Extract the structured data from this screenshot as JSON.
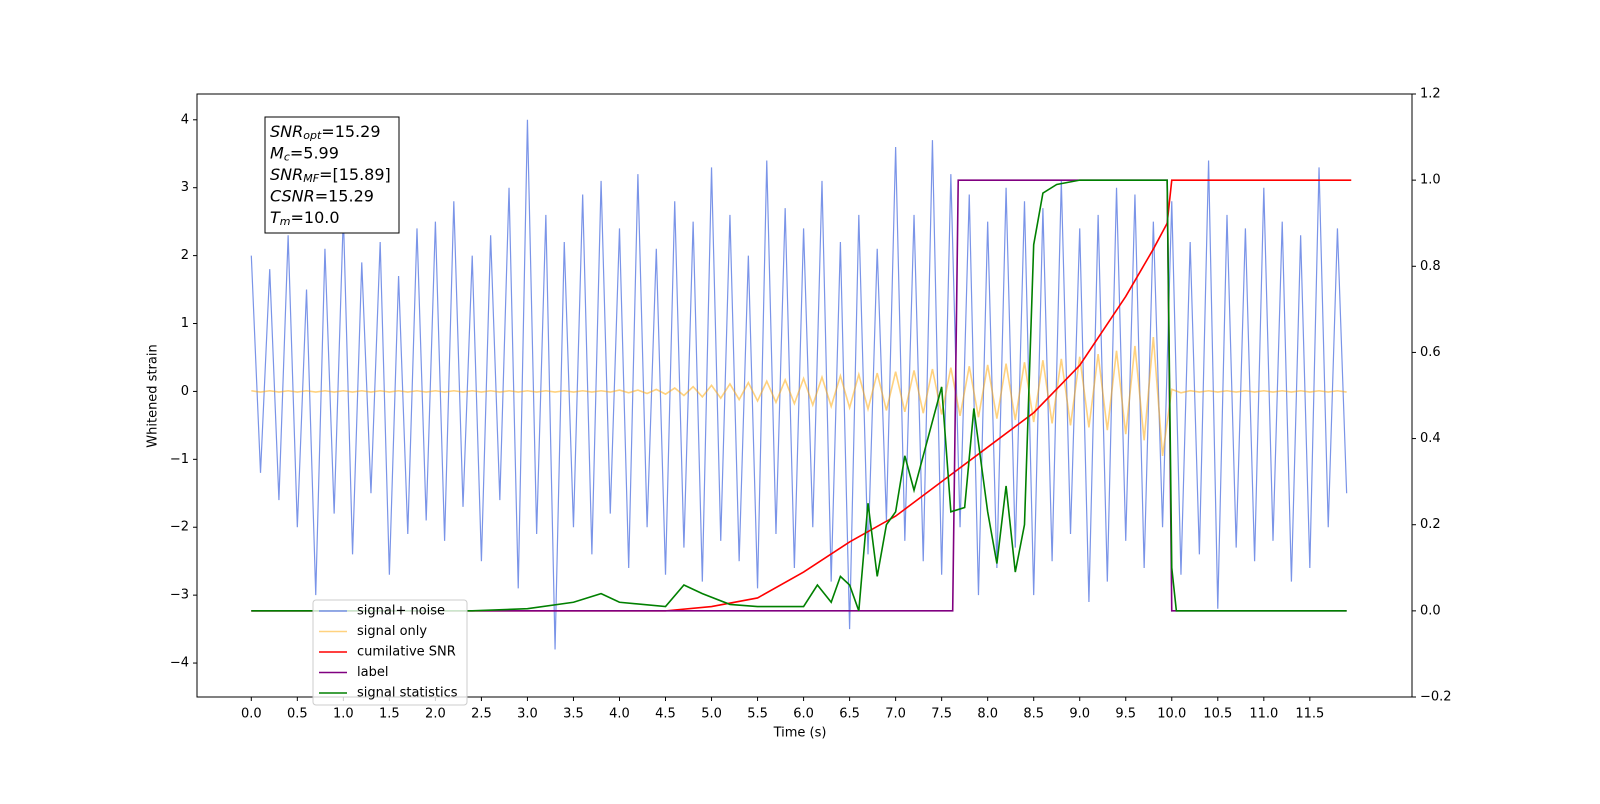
{
  "chart_data": {
    "type": "line",
    "xlabel": "Time (s)",
    "ylabel": "Whitened strain",
    "annotations": [
      {
        "symbol": "SNR",
        "sub": "opt",
        "text": "=15.29"
      },
      {
        "symbol": "M",
        "sub": "c",
        "text": "=5.99"
      },
      {
        "symbol": "SNR",
        "sub": "MF",
        "text": "=[15.89]"
      },
      {
        "symbol": "CSNR",
        "sub": null,
        "text": "=15.29"
      },
      {
        "symbol": "T",
        "sub": "m",
        "text": "=10.0"
      }
    ],
    "xlim": [
      -0.59,
      12.61
    ],
    "ylim": [
      -4.5,
      4.38
    ],
    "y2lim": [
      -0.2,
      1.2
    ],
    "xticks": [
      {
        "value": 0,
        "label": "0.0"
      },
      {
        "value": 0.5,
        "label": "0.5"
      },
      {
        "value": 1,
        "label": "1.0"
      },
      {
        "value": 1.5,
        "label": "1.5"
      },
      {
        "value": 2,
        "label": "2.0"
      },
      {
        "value": 2.5,
        "label": "2.5"
      },
      {
        "value": 3,
        "label": "3.0"
      },
      {
        "value": 3.5,
        "label": "3.5"
      },
      {
        "value": 4,
        "label": "4.0"
      },
      {
        "value": 4.5,
        "label": "4.5"
      },
      {
        "value": 5,
        "label": "5.0"
      },
      {
        "value": 5.5,
        "label": "5.5"
      },
      {
        "value": 6,
        "label": "6.0"
      },
      {
        "value": 6.5,
        "label": "6.5"
      },
      {
        "value": 7,
        "label": "7.0"
      },
      {
        "value": 7.5,
        "label": "7.5"
      },
      {
        "value": 8,
        "label": "8.0"
      },
      {
        "value": 8.5,
        "label": "8.5"
      },
      {
        "value": 9,
        "label": "9.0"
      },
      {
        "value": 9.5,
        "label": "9.5"
      },
      {
        "value": 10,
        "label": "10.0"
      },
      {
        "value": 10.5,
        "label": "10.5"
      },
      {
        "value": 11,
        "label": "11.0"
      },
      {
        "value": 11.5,
        "label": "11.5"
      }
    ],
    "yticks": [
      {
        "value": -4,
        "label": "−4"
      },
      {
        "value": -3,
        "label": "−3"
      },
      {
        "value": -2,
        "label": "−2"
      },
      {
        "value": -1,
        "label": "−1"
      },
      0,
      1,
      2,
      3,
      4
    ],
    "y2ticks": [
      {
        "value": -0.2,
        "label": "−0.2"
      },
      {
        "value": 0,
        "label": "0.0"
      },
      0.2,
      0.4,
      0.6,
      0.8,
      {
        "value": 1,
        "label": "1.0"
      },
      1.2
    ],
    "legend": "lower left",
    "x": [
      0,
      0.1,
      0.2,
      0.3,
      0.4,
      0.5,
      0.6,
      0.7,
      0.8,
      0.9,
      1,
      1.1,
      1.2,
      1.3,
      1.4,
      1.5,
      1.6,
      1.7,
      1.8,
      1.9,
      2,
      2.1,
      2.2,
      2.3,
      2.4,
      2.5,
      2.6,
      2.7,
      2.8,
      2.9,
      3,
      3.1,
      3.2,
      3.3,
      3.4,
      3.5,
      3.6,
      3.7,
      3.8,
      3.9,
      4,
      4.1,
      4.2,
      4.3,
      4.4,
      4.5,
      4.6,
      4.7,
      4.8,
      4.9,
      5,
      5.1,
      5.2,
      5.3,
      5.4,
      5.5,
      5.6,
      5.7,
      5.8,
      5.9,
      6,
      6.1,
      6.2,
      6.3,
      6.4,
      6.5,
      6.6,
      6.7,
      6.8,
      6.9,
      7,
      7.1,
      7.2,
      7.3,
      7.4,
      7.5,
      7.6,
      7.7,
      7.8,
      7.9,
      8,
      8.1,
      8.2,
      8.3,
      8.4,
      8.5,
      8.6,
      8.7,
      8.8,
      8.9,
      9,
      9.1,
      9.2,
      9.3,
      9.4,
      9.5,
      9.6,
      9.7,
      9.8,
      9.9,
      10,
      10.1,
      10.2,
      10.3,
      10.4,
      10.5,
      10.6,
      10.7,
      10.8,
      10.9,
      11,
      11.1,
      11.2,
      11.3,
      11.4,
      11.5,
      11.6,
      11.7,
      11.8,
      11.9
    ],
    "series": [
      {
        "name": "signal+ noise",
        "color": "#7a94e8",
        "values": [
          2.0,
          -1.2,
          1.8,
          -1.6,
          2.3,
          -2.0,
          1.5,
          -3.0,
          2.1,
          -1.8,
          2.6,
          -2.4,
          1.9,
          -1.5,
          2.2,
          -2.7,
          1.7,
          -2.1,
          2.4,
          -1.9,
          2.5,
          -2.2,
          2.8,
          -1.7,
          2.0,
          -2.5,
          2.3,
          -1.6,
          3.0,
          -2.9,
          4.0,
          -2.1,
          2.6,
          -3.8,
          2.2,
          -2.0,
          2.9,
          -2.4,
          3.1,
          -1.8,
          2.4,
          -2.6,
          3.2,
          -2.0,
          2.1,
          -2.7,
          2.8,
          -2.3,
          2.5,
          -2.8,
          3.3,
          -2.2,
          2.6,
          -2.5,
          2.0,
          -2.9,
          3.4,
          -2.1,
          2.7,
          -2.6,
          2.4,
          -2.0,
          3.1,
          -2.8,
          2.2,
          -3.5,
          2.6,
          -2.4,
          2.1,
          -1.9,
          3.6,
          -2.2,
          2.6,
          -2.5,
          3.7,
          -2.7,
          3.2,
          -2.0,
          2.9,
          -3.0,
          2.5,
          -2.6,
          3.0,
          -2.3,
          2.8,
          -3.0,
          2.7,
          -2.5,
          3.1,
          -2.1,
          2.4,
          -3.1,
          2.6,
          -2.8,
          3.0,
          -2.2,
          2.9,
          -2.6,
          2.5,
          -2.0,
          2.8,
          -2.7,
          2.2,
          -2.4,
          3.4,
          -3.2,
          2.6,
          -2.3,
          2.4,
          -2.5,
          3.0,
          -2.2,
          2.5,
          -2.8,
          2.3,
          -2.6,
          3.3,
          -2.0,
          2.4,
          -1.5
        ]
      },
      {
        "name": "signal only",
        "color": "#ffa500",
        "values": [
          0.01,
          -0.01,
          0.01,
          -0.01,
          0.01,
          -0.01,
          0.01,
          -0.01,
          0.01,
          -0.01,
          0.01,
          -0.01,
          0.01,
          -0.01,
          0.01,
          -0.01,
          0.01,
          -0.01,
          0.01,
          -0.01,
          0.01,
          -0.01,
          0.01,
          -0.01,
          0.01,
          -0.01,
          0.01,
          -0.01,
          0.01,
          -0.01,
          0.01,
          -0.01,
          0.01,
          -0.01,
          0.01,
          -0.01,
          0.01,
          -0.01,
          0.01,
          -0.01,
          0.02,
          -0.02,
          0.02,
          -0.03,
          0.03,
          -0.04,
          0.05,
          -0.06,
          0.07,
          -0.08,
          0.09,
          -0.1,
          0.11,
          -0.12,
          0.13,
          -0.14,
          0.15,
          -0.16,
          0.17,
          -0.18,
          0.19,
          -0.2,
          0.21,
          -0.22,
          0.23,
          -0.24,
          0.25,
          -0.26,
          0.27,
          -0.28,
          0.29,
          -0.3,
          0.31,
          -0.32,
          0.33,
          -0.34,
          0.35,
          -0.36,
          0.37,
          -0.38,
          0.39,
          -0.4,
          0.41,
          -0.42,
          0.43,
          -0.45,
          0.46,
          -0.47,
          0.48,
          -0.5,
          0.51,
          -0.53,
          0.55,
          -0.57,
          0.6,
          -0.63,
          0.67,
          -0.72,
          0.8,
          -0.95,
          0.03,
          -0.02,
          0.01,
          -0.01,
          0.01,
          -0.01,
          0.01,
          -0.01,
          0.01,
          -0.01,
          0.01,
          -0.01,
          0.01,
          -0.01,
          0.01,
          -0.01,
          0.01,
          -0.01,
          0.01,
          -0.01
        ]
      },
      {
        "name": "cumilative SNR",
        "color": "#ff0000",
        "axis": "y2",
        "x": [
          0,
          4.5,
          5.0,
          5.5,
          6.0,
          6.5,
          7.0,
          7.5,
          8.0,
          8.5,
          9.0,
          9.5,
          9.8,
          9.95,
          10.0,
          11.95
        ],
        "values": [
          0,
          0,
          0.01,
          0.03,
          0.09,
          0.16,
          0.22,
          0.3,
          0.38,
          0.46,
          0.57,
          0.73,
          0.84,
          0.9,
          1.0,
          1.0
        ]
      },
      {
        "name": "label",
        "color": "#800080",
        "axis": "y2",
        "x": [
          0,
          7.62,
          7.68,
          9.95,
          10.0,
          11.9
        ],
        "values": [
          0,
          0,
          1,
          1,
          0,
          0
        ]
      },
      {
        "name": "signal statistics",
        "color": "#008000",
        "axis": "y2",
        "x": [
          0,
          2.4,
          3.0,
          3.5,
          3.8,
          4.0,
          4.5,
          4.7,
          4.9,
          5.2,
          5.5,
          6.0,
          6.15,
          6.3,
          6.4,
          6.5,
          6.6,
          6.7,
          6.8,
          6.9,
          7.0,
          7.1,
          7.2,
          7.35,
          7.5,
          7.6,
          7.75,
          7.85,
          8.0,
          8.1,
          8.2,
          8.3,
          8.4,
          8.5,
          8.6,
          8.75,
          9.0,
          9.95,
          10.0,
          10.05,
          11.9
        ],
        "values": [
          0,
          0,
          0.005,
          0.02,
          0.04,
          0.02,
          0.01,
          0.06,
          0.04,
          0.015,
          0.01,
          0.01,
          0.06,
          0.02,
          0.08,
          0.06,
          0.0,
          0.25,
          0.08,
          0.2,
          0.23,
          0.36,
          0.28,
          0.4,
          0.52,
          0.23,
          0.24,
          0.47,
          0.23,
          0.11,
          0.29,
          0.09,
          0.2,
          0.85,
          0.97,
          0.99,
          1.0,
          1.0,
          0.1,
          0.0,
          0.0
        ]
      }
    ]
  }
}
